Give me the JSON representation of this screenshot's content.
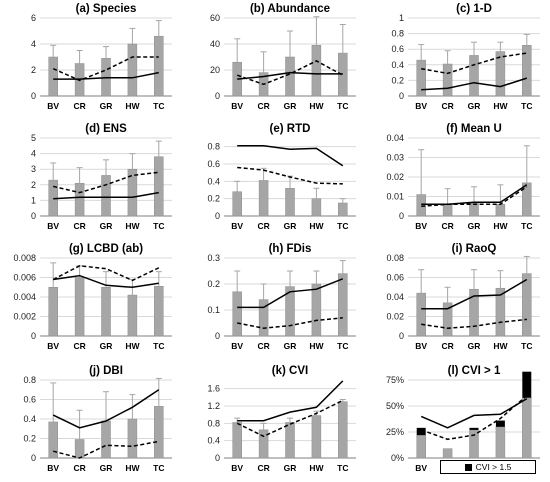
{
  "chart_data": [
    {
      "panel": "(a) Species",
      "type": "bar",
      "categories": [
        "BV",
        "CR",
        "GR",
        "HW",
        "TC"
      ],
      "values": [
        3.0,
        2.5,
        2.9,
        4.0,
        4.6
      ],
      "err": [
        0.9,
        1.0,
        0.9,
        1.2,
        1.2
      ],
      "line_solid": [
        1.3,
        1.3,
        1.4,
        1.4,
        1.8
      ],
      "line_dashed": [
        2.1,
        1.2,
        2.0,
        3.0,
        3.0
      ],
      "ylim": [
        0,
        6
      ],
      "yticks": [
        0,
        2,
        4,
        6
      ]
    },
    {
      "panel": "(b) Abundance",
      "type": "bar",
      "categories": [
        "BV",
        "CR",
        "GR",
        "HW",
        "TC"
      ],
      "values": [
        26,
        18,
        30,
        39,
        33
      ],
      "err": [
        18,
        16,
        20,
        22,
        22
      ],
      "line_solid": [
        13,
        15,
        18,
        17,
        17
      ],
      "line_dashed": [
        16,
        9,
        17,
        27,
        16
      ],
      "ylim": [
        0,
        60
      ],
      "yticks": [
        0,
        20,
        40,
        60
      ]
    },
    {
      "panel": "(c) 1-D",
      "type": "bar",
      "categories": [
        "BV",
        "CR",
        "GR",
        "HW",
        "TC"
      ],
      "values": [
        0.46,
        0.41,
        0.52,
        0.57,
        0.65
      ],
      "err": [
        0.2,
        0.17,
        0.17,
        0.12,
        0.14
      ],
      "line_solid": [
        0.08,
        0.1,
        0.17,
        0.12,
        0.23
      ],
      "line_dashed": [
        0.35,
        0.29,
        0.4,
        0.5,
        0.55
      ],
      "ylim": [
        0,
        1
      ],
      "yticks": [
        0,
        0.2,
        0.4,
        0.6,
        0.8,
        1
      ]
    },
    {
      "panel": "(d) ENS",
      "type": "bar",
      "categories": [
        "BV",
        "CR",
        "GR",
        "HW",
        "TC"
      ],
      "values": [
        2.3,
        2.1,
        2.6,
        3.0,
        3.8
      ],
      "err": [
        1.1,
        1.0,
        1.0,
        1.0,
        1.0
      ],
      "line_solid": [
        1.1,
        1.2,
        1.2,
        1.2,
        1.5
      ],
      "line_dashed": [
        1.9,
        1.5,
        2.0,
        2.6,
        2.8
      ],
      "ylim": [
        0,
        5
      ],
      "yticks": [
        0,
        1,
        2,
        3,
        4,
        5
      ]
    },
    {
      "panel": "(e) RTD",
      "type": "bar",
      "categories": [
        "BV",
        "CR",
        "GR",
        "HW",
        "TC"
      ],
      "values": [
        0.28,
        0.41,
        0.32,
        0.2,
        0.15
      ],
      "err": [
        0.12,
        0.14,
        0.14,
        0.12,
        0.05
      ],
      "line_solid": [
        0.81,
        0.81,
        0.77,
        0.78,
        0.58
      ],
      "line_dashed": [
        0.56,
        0.53,
        0.45,
        0.38,
        0.37
      ],
      "ylim": [
        0,
        0.9
      ],
      "yticks": [
        0,
        0.2,
        0.4,
        0.6,
        0.8
      ]
    },
    {
      "panel": "(f) Mean U",
      "type": "bar",
      "categories": [
        "BV",
        "CR",
        "GR",
        "HW",
        "TC"
      ],
      "values": [
        0.011,
        0.006,
        0.007,
        0.006,
        0.017
      ],
      "err": [
        0.023,
        0.008,
        0.008,
        0.01,
        0.019
      ],
      "line_solid": [
        0.006,
        0.006,
        0.007,
        0.007,
        0.016
      ],
      "line_dashed": [
        0.005,
        0.006,
        0.006,
        0.006,
        0.015
      ],
      "ylim": [
        0,
        0.04
      ],
      "yticks": [
        0,
        0.01,
        0.02,
        0.03,
        0.04
      ]
    },
    {
      "panel": "(g) LCBD (ab)",
      "type": "bar",
      "categories": [
        "BV",
        "CR",
        "GR",
        "HW",
        "TC"
      ],
      "values": [
        0.005,
        0.006,
        0.005,
        0.0042,
        0.0051
      ],
      "err": [
        0.0025,
        0.0012,
        0.0016,
        0.0016,
        0.0015
      ],
      "line_solid": [
        0.0058,
        0.0062,
        0.0052,
        0.005,
        0.0054
      ],
      "line_dashed": [
        0.0058,
        0.0072,
        0.0069,
        0.0057,
        0.007
      ],
      "ylim": [
        0,
        0.008
      ],
      "yticks": [
        0,
        0.002,
        0.004,
        0.006,
        0.008
      ]
    },
    {
      "panel": "(h) FDis",
      "type": "bar",
      "categories": [
        "BV",
        "CR",
        "GR",
        "HW",
        "TC"
      ],
      "values": [
        0.17,
        0.14,
        0.19,
        0.2,
        0.24
      ],
      "err": [
        0.08,
        0.06,
        0.06,
        0.05,
        0.05
      ],
      "line_solid": [
        0.11,
        0.11,
        0.17,
        0.18,
        0.22
      ],
      "line_dashed": [
        0.05,
        0.03,
        0.04,
        0.06,
        0.07
      ],
      "ylim": [
        0,
        0.3
      ],
      "yticks": [
        0,
        0.1,
        0.2,
        0.3
      ]
    },
    {
      "panel": "(i) RaoQ",
      "type": "bar",
      "categories": [
        "BV",
        "CR",
        "GR",
        "HW",
        "TC"
      ],
      "values": [
        0.044,
        0.034,
        0.048,
        0.049,
        0.064
      ],
      "err": [
        0.024,
        0.016,
        0.02,
        0.018,
        0.018
      ],
      "line_solid": [
        0.028,
        0.028,
        0.041,
        0.042,
        0.058
      ],
      "line_dashed": [
        0.012,
        0.008,
        0.01,
        0.014,
        0.017
      ],
      "ylim": [
        0,
        0.08
      ],
      "yticks": [
        0,
        0.02,
        0.04,
        0.06,
        0.08
      ]
    },
    {
      "panel": "(j) DBI",
      "type": "bar",
      "categories": [
        "BV",
        "CR",
        "GR",
        "HW",
        "TC"
      ],
      "values": [
        0.37,
        0.19,
        0.38,
        0.4,
        0.53
      ],
      "err": [
        0.4,
        0.3,
        0.3,
        0.25,
        0.3
      ],
      "line_solid": [
        0.44,
        0.31,
        0.38,
        0.52,
        0.7
      ],
      "line_dashed": [
        0.07,
        0.0,
        0.13,
        0.12,
        0.17
      ],
      "ylim": [
        0,
        0.8
      ],
      "yticks": [
        0,
        0.2,
        0.4,
        0.6,
        0.8
      ]
    },
    {
      "panel": "(k) CVI",
      "type": "bar",
      "categories": [
        "BV",
        "CR",
        "GR",
        "HW",
        "TC"
      ],
      "values": [
        0.82,
        0.65,
        0.82,
        0.98,
        1.3
      ],
      "err": [
        0.1,
        0.15,
        0.1,
        0.1,
        0.05
      ],
      "line_solid": [
        0.86,
        0.86,
        1.06,
        1.17,
        1.78
      ],
      "line_dashed": [
        0.8,
        0.5,
        0.78,
        1.03,
        1.33
      ],
      "ylim": [
        0,
        1.8
      ],
      "yticks": [
        0,
        0.4,
        0.8,
        1.2,
        1.6
      ]
    },
    {
      "panel": "(l) CVI > 1",
      "type": "stacked_bar",
      "categories": [
        "BV",
        "CR",
        "GR",
        "HW",
        "TC"
      ],
      "values": [
        22,
        9,
        27,
        30,
        58
      ],
      "values_top": [
        7,
        0,
        2,
        6,
        25
      ],
      "line_solid": [
        40,
        29,
        41,
        42,
        57
      ],
      "line_dashed": [
        27,
        18,
        22,
        38,
        60
      ],
      "ylim": [
        0,
        75
      ],
      "yticks": [
        0,
        25,
        50,
        75
      ],
      "ytick_labels": [
        "0%",
        "25%",
        "50%",
        "75%"
      ],
      "legend": "CVI > 1.5"
    }
  ]
}
